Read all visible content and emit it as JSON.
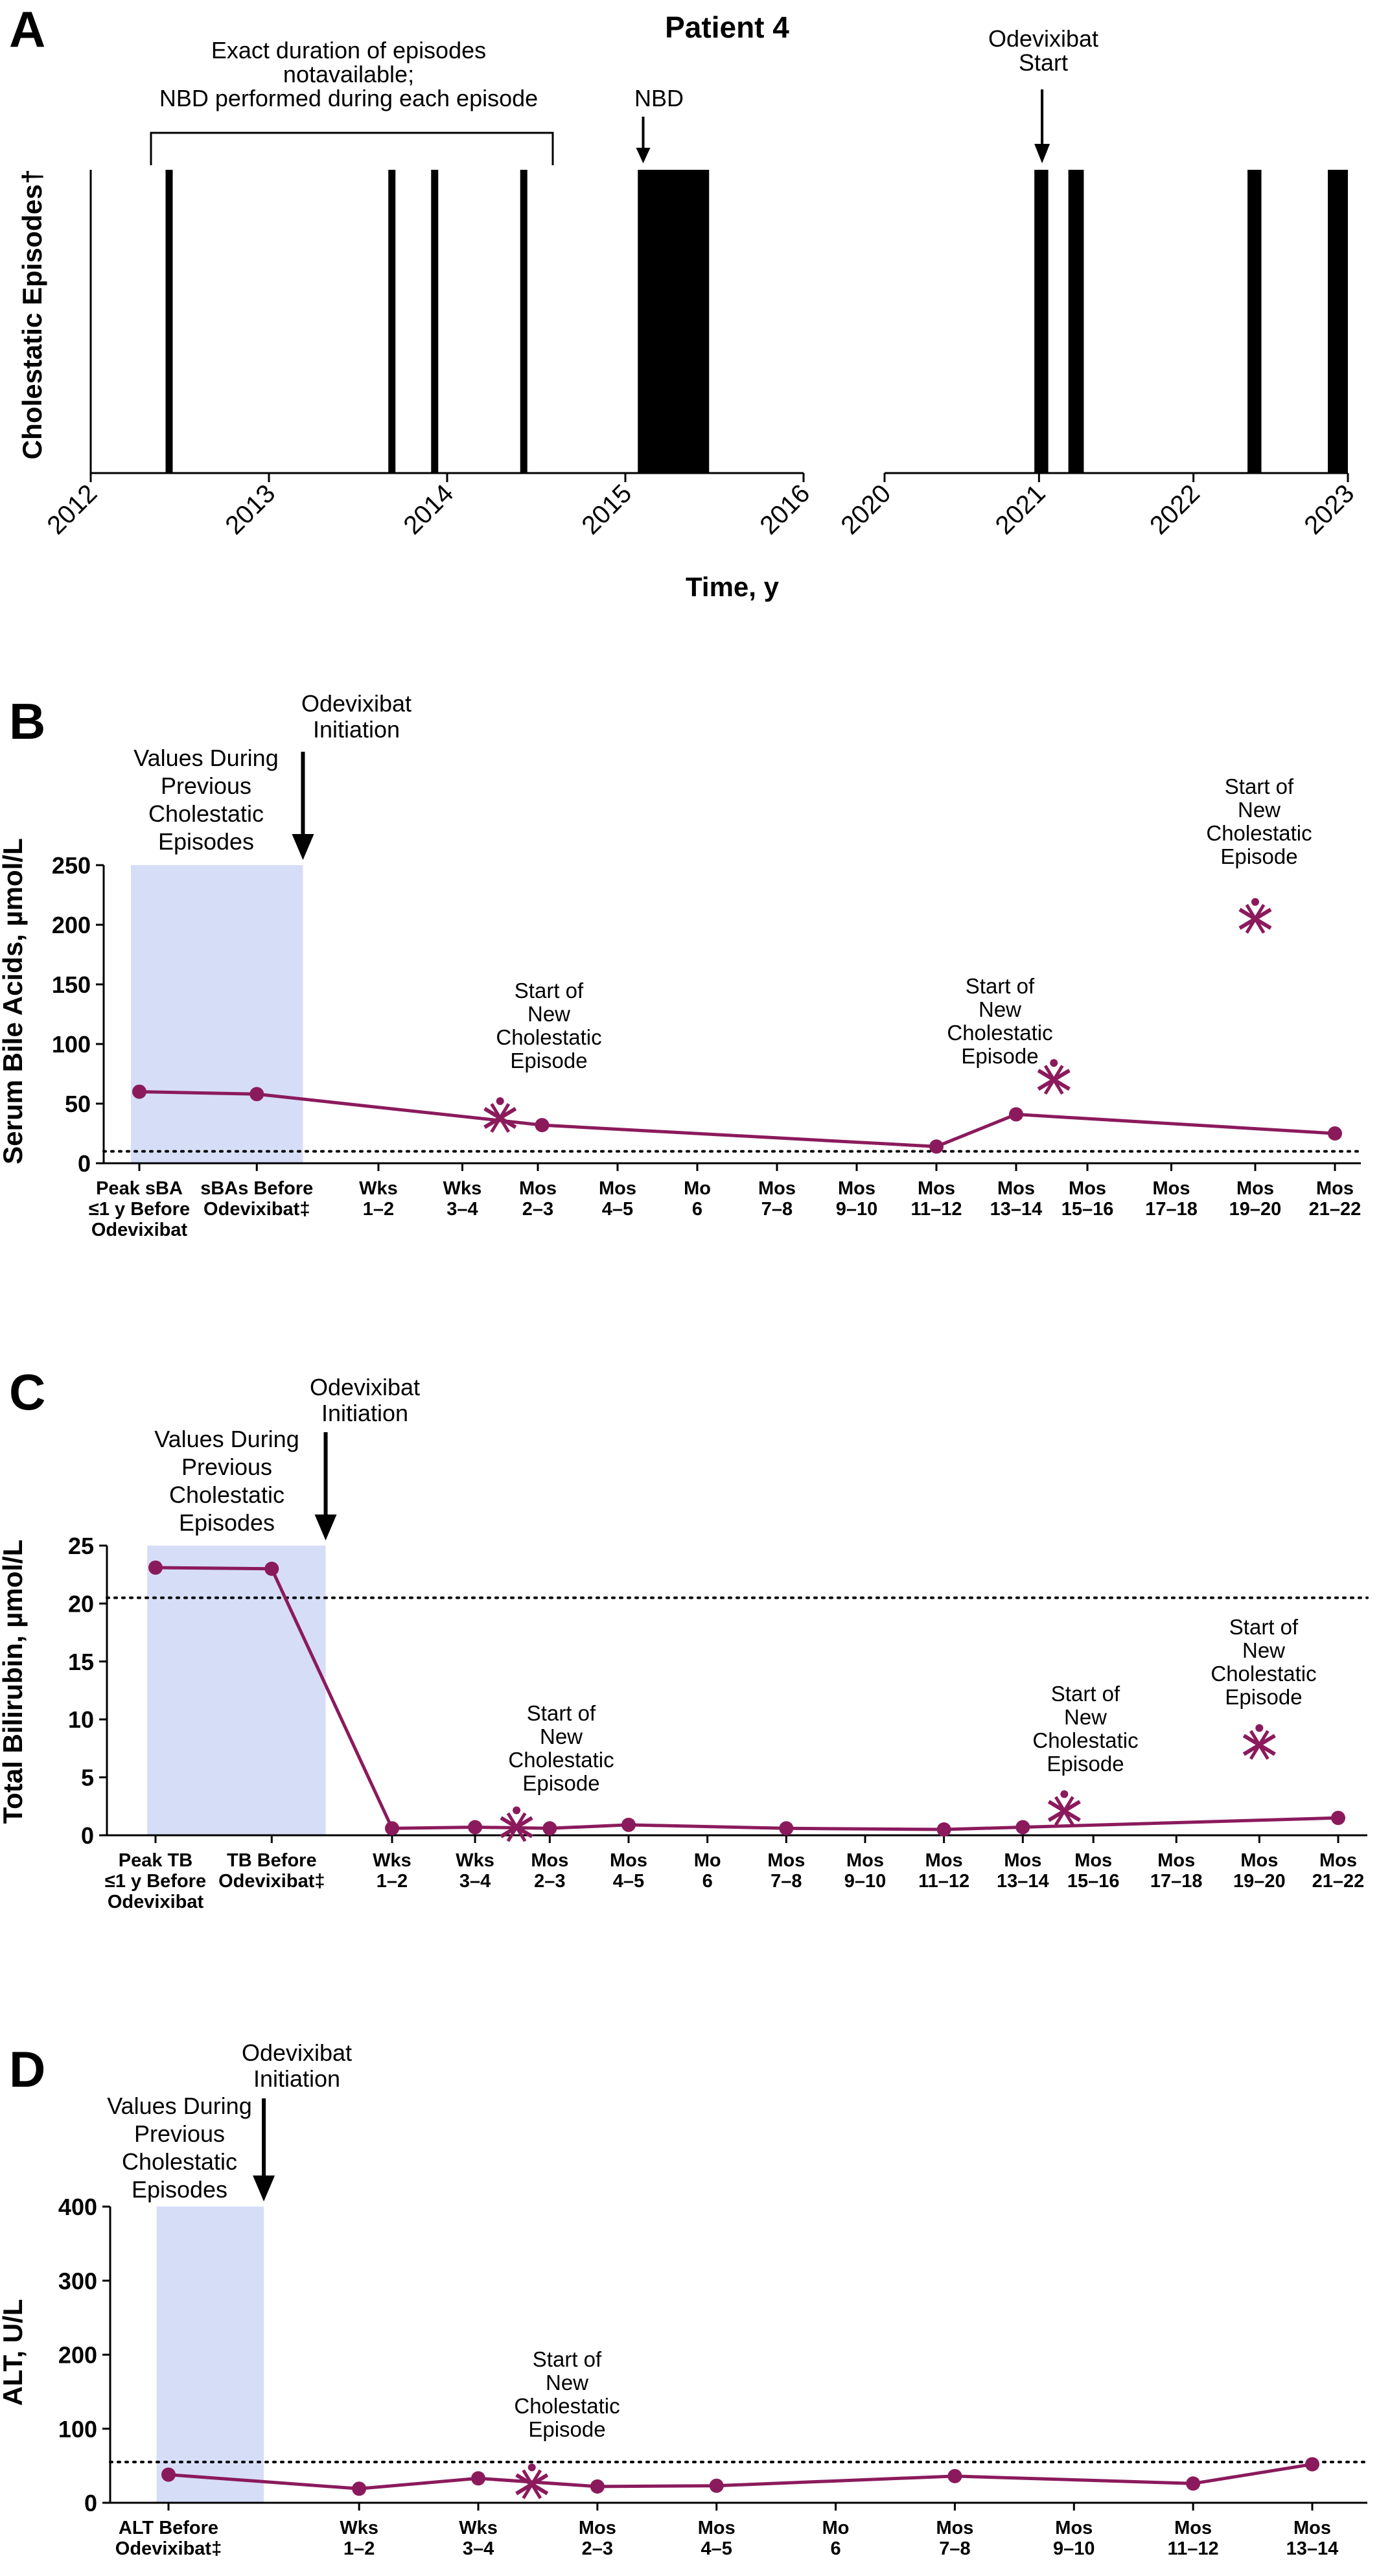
{
  "panel_a": {
    "letter": "A",
    "title": "Patient 4",
    "ylabel": "Cholestatic Episodes†",
    "xlabel": "Time, y",
    "bracket_label": [
      "Exact duration of episodes",
      "notavailable;",
      "NBD performed during each episode"
    ],
    "nbd_label": "NBD",
    "start_label": [
      "Odevixibat",
      "Start"
    ]
  },
  "panel_b": {
    "letter": "B",
    "ylabel": "Serum Bile Acids, µmol/L",
    "shade_label": [
      "Values During",
      "Previous",
      "Cholestatic",
      "Episodes"
    ],
    "init_label": [
      "Odevixibat",
      "Initiation"
    ],
    "episode_label": [
      "Start of",
      "New",
      "Cholestatic",
      "Episode"
    ]
  },
  "panel_c": {
    "letter": "C",
    "ylabel": "Total Bilirubin, µmol/L",
    "shade_label": [
      "Values During",
      "Previous",
      "Cholestatic",
      "Episodes"
    ],
    "init_label": [
      "Odevixibat",
      "Initiation"
    ],
    "episode_label": [
      "Start of",
      "New",
      "Cholestatic",
      "Episode"
    ]
  },
  "panel_d": {
    "letter": "D",
    "ylabel": "ALT, U/L",
    "shade_label": [
      "Values During",
      "Previous",
      "Cholestatic",
      "Episodes"
    ],
    "init_label": [
      "Odevixibat",
      "Initiation"
    ],
    "episode_label": [
      "Start of",
      "New",
      "Cholestatic",
      "Episode"
    ]
  },
  "chart_data": [
    {
      "type": "bar",
      "panel": "A",
      "title": "Patient 4",
      "xlabel": "Time, y",
      "ylabel": "Cholestatic Episodes†",
      "axis_segments": [
        [
          2012,
          2016
        ],
        [
          2020,
          2023
        ]
      ],
      "ticks": [
        2012,
        2013,
        2014,
        2015,
        2016,
        2020,
        2021,
        2022,
        2023
      ],
      "episodes": [
        {
          "start": 2012.42,
          "end": 2012.46
        },
        {
          "start": 2013.67,
          "end": 2013.71
        },
        {
          "start": 2013.91,
          "end": 2013.95
        },
        {
          "start": 2014.41,
          "end": 2014.45
        },
        {
          "start": 2015.07,
          "end": 2015.47
        },
        {
          "start": 2020.97,
          "end": 2021.06
        },
        {
          "start": 2021.19,
          "end": 2021.29
        },
        {
          "start": 2022.35,
          "end": 2022.44
        },
        {
          "start": 2022.87,
          "end": 2023.0
        }
      ],
      "nbd_at": 2015.1,
      "odevixibat_start": 2021.02
    },
    {
      "type": "line",
      "panel": "B",
      "ylabel": "Serum Bile Acids, µmol/L",
      "ylim": [
        0,
        250
      ],
      "yticks": [
        0,
        50,
        100,
        150,
        200,
        250
      ],
      "reference_line": 10,
      "categories": [
        [
          "Peak sBA",
          "≤1 y Before",
          "Odevixibat"
        ],
        [
          "sBAs Before",
          "Odevixibat‡"
        ],
        [
          "Wks",
          "1–2"
        ],
        [
          "Wks",
          "3–4"
        ],
        [
          "Mos",
          "2–3"
        ],
        [
          "Mos",
          "4–5"
        ],
        [
          "Mo",
          "6"
        ],
        [
          "Mos",
          "7–8"
        ],
        [
          "Mos",
          "9–10"
        ],
        [
          "Mos",
          "11–12"
        ],
        [
          "Mos",
          "13–14"
        ],
        [
          "Mos",
          "15–16"
        ],
        [
          "Mos",
          "17–18"
        ],
        [
          "Mos",
          "19–20"
        ],
        [
          "Mos",
          "21–22"
        ]
      ],
      "category_positions": [
        0.0,
        1.4,
        2.85,
        3.85,
        4.75,
        5.7,
        6.65,
        7.6,
        8.55,
        9.5,
        10.45,
        11.3,
        12.3,
        13.3,
        14.25
      ],
      "points": [
        {
          "x": 0.0,
          "y": 60
        },
        {
          "x": 1.4,
          "y": 58
        },
        {
          "x": 4.8,
          "y": 32
        },
        {
          "x": 9.5,
          "y": 14
        },
        {
          "x": 10.45,
          "y": 41
        },
        {
          "x": 14.25,
          "y": 25
        }
      ],
      "episode_markers": [
        {
          "x": 4.3,
          "y": 38
        },
        {
          "x": 10.9,
          "y": 70
        },
        {
          "x": 13.3,
          "y": 205
        }
      ],
      "shaded_region": [
        -0.1,
        1.95
      ]
    },
    {
      "type": "line",
      "panel": "C",
      "ylabel": "Total Bilirubin, µmol/L",
      "ylim": [
        0,
        25
      ],
      "yticks": [
        0,
        5,
        10,
        15,
        20,
        25
      ],
      "reference_line": 20.5,
      "categories": [
        [
          "Peak TB",
          "≤1 y Before",
          "Odevixibat"
        ],
        [
          "TB Before",
          "Odevixibat‡"
        ],
        [
          "Wks",
          "1–2"
        ],
        [
          "Wks",
          "3–4"
        ],
        [
          "Mos",
          "2–3"
        ],
        [
          "Mos",
          "4–5"
        ],
        [
          "Mo",
          "6"
        ],
        [
          "Mos",
          "7–8"
        ],
        [
          "Mos",
          "9–10"
        ],
        [
          "Mos",
          "11–12"
        ],
        [
          "Mos",
          "13–14"
        ],
        [
          "Mos",
          "15–16"
        ],
        [
          "Mos",
          "17–18"
        ],
        [
          "Mos",
          "19–20"
        ],
        [
          "Mos",
          "21–22"
        ]
      ],
      "category_positions": [
        0.0,
        1.4,
        2.85,
        3.85,
        4.75,
        5.7,
        6.65,
        7.6,
        8.55,
        9.5,
        10.45,
        11.3,
        12.3,
        13.3,
        14.25
      ],
      "points": [
        {
          "x": 0.0,
          "y": 23.1
        },
        {
          "x": 1.4,
          "y": 23.0
        },
        {
          "x": 2.85,
          "y": 0.6
        },
        {
          "x": 3.85,
          "y": 0.7
        },
        {
          "x": 4.75,
          "y": 0.6
        },
        {
          "x": 5.7,
          "y": 0.9
        },
        {
          "x": 7.6,
          "y": 0.6
        },
        {
          "x": 9.5,
          "y": 0.5
        },
        {
          "x": 10.45,
          "y": 0.7
        },
        {
          "x": 14.25,
          "y": 1.5
        }
      ],
      "episode_markers": [
        {
          "x": 4.35,
          "y": 0.7
        },
        {
          "x": 10.95,
          "y": 2.1
        },
        {
          "x": 13.3,
          "y": 7.8
        }
      ],
      "shaded_region": [
        -0.1,
        2.05
      ]
    },
    {
      "type": "line",
      "panel": "D",
      "ylabel": "ALT, U/L",
      "ylim": [
        0,
        400
      ],
      "yticks": [
        0,
        100,
        200,
        300,
        400
      ],
      "reference_line": 55,
      "categories": [
        [
          "ALT Before",
          "Odevixibat‡"
        ],
        [
          "Wks",
          "1–2"
        ],
        [
          "Wks",
          "3–4"
        ],
        [
          "Mos",
          "2–3"
        ],
        [
          "Mos",
          "4–5"
        ],
        [
          "Mo",
          "6"
        ],
        [
          "Mos",
          "7–8"
        ],
        [
          "Mos",
          "9–10"
        ],
        [
          "Mos",
          "11–12"
        ],
        [
          "Mos",
          "13–14"
        ]
      ],
      "category_positions": [
        0.0,
        1.6,
        2.6,
        3.6,
        4.6,
        5.6,
        6.6,
        7.6,
        8.6,
        9.6
      ],
      "points": [
        {
          "x": 0.0,
          "y": 38
        },
        {
          "x": 1.6,
          "y": 19
        },
        {
          "x": 2.6,
          "y": 33
        },
        {
          "x": 3.6,
          "y": 22
        },
        {
          "x": 4.6,
          "y": 23
        },
        {
          "x": 6.6,
          "y": 36
        },
        {
          "x": 8.6,
          "y": 26
        },
        {
          "x": 9.6,
          "y": 52
        }
      ],
      "episode_markers": [
        {
          "x": 3.05,
          "y": 25
        }
      ],
      "shaded_region": [
        -0.1,
        0.8
      ]
    }
  ],
  "colors": {
    "series": "#8b1a5c",
    "shade": "#d6ddf7",
    "axis": "#000000"
  }
}
